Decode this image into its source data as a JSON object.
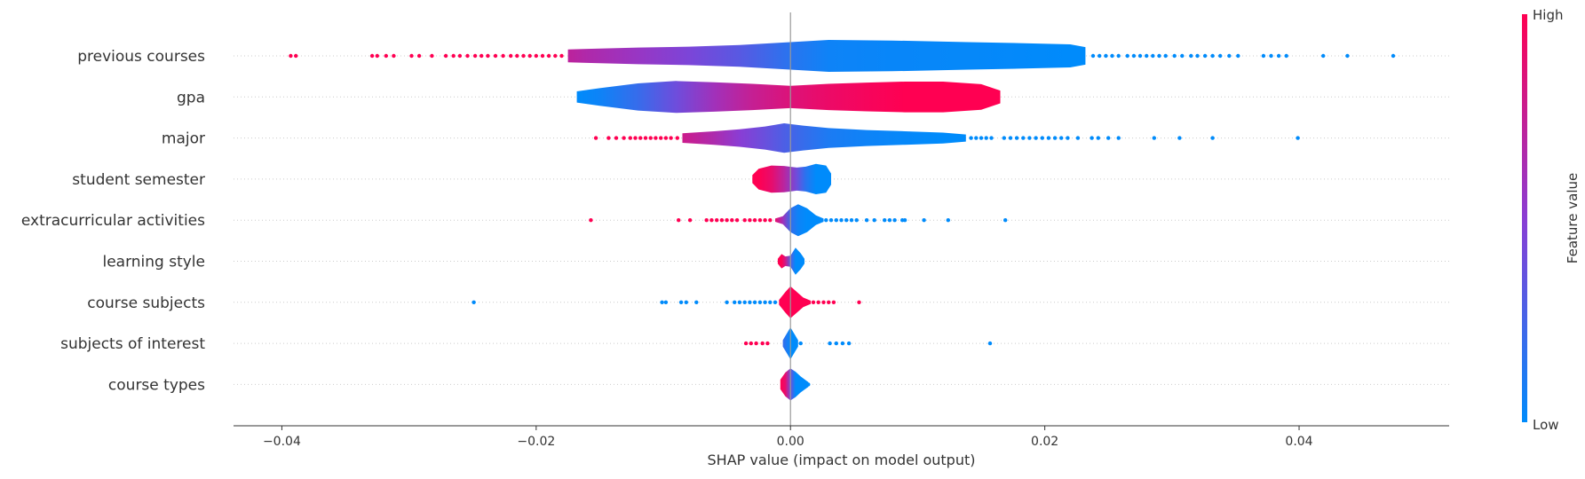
{
  "chart_data": {
    "type": "violin",
    "title": "",
    "xlabel": "SHAP value (impact on model output)",
    "ylabel": "",
    "xlim": [
      -0.0438,
      0.0518
    ],
    "xticks": [
      -0.04,
      -0.02,
      0.0,
      0.02,
      0.04
    ],
    "xtick_labels": [
      "−0.04",
      "−0.02",
      "0.00",
      "0.02",
      "0.04"
    ],
    "grid": false,
    "colorbar": {
      "label": "Feature value",
      "high_label": "High",
      "low_label": "Low",
      "high_color": "#ff0052",
      "low_color": "#008bfb"
    },
    "features": [
      {
        "name": "previous courses",
        "violin": [
          [
            -0.0175,
            0.4,
            0.72
          ],
          [
            -0.016,
            0.44,
            0.66
          ],
          [
            -0.012,
            0.52,
            0.56
          ],
          [
            -0.008,
            0.58,
            0.45
          ],
          [
            -0.004,
            0.68,
            0.32
          ],
          [
            0.0,
            0.86,
            0.15
          ],
          [
            0.003,
            1.0,
            0.05
          ],
          [
            0.008,
            0.96,
            0.03
          ],
          [
            0.014,
            0.86,
            0.02
          ],
          [
            0.018,
            0.8,
            0.01
          ],
          [
            0.022,
            0.72,
            0.0
          ],
          [
            0.0232,
            0.55,
            0.0
          ]
        ],
        "outliers": [
          [
            -0.0393,
            1
          ],
          [
            -0.0389,
            1
          ],
          [
            -0.0329,
            1
          ],
          [
            -0.0325,
            1
          ],
          [
            -0.0318,
            1
          ],
          [
            -0.0312,
            1
          ],
          [
            -0.0298,
            1
          ],
          [
            -0.0292,
            1
          ],
          [
            -0.0282,
            1
          ],
          [
            -0.0271,
            1
          ],
          [
            -0.0265,
            1
          ],
          [
            -0.026,
            1
          ],
          [
            -0.0254,
            1
          ],
          [
            -0.0248,
            1
          ],
          [
            -0.0243,
            1
          ],
          [
            -0.0238,
            1
          ],
          [
            -0.0232,
            1
          ],
          [
            -0.0226,
            1
          ],
          [
            -0.022,
            1
          ],
          [
            -0.0215,
            1
          ],
          [
            -0.021,
            1
          ],
          [
            -0.0205,
            1
          ],
          [
            -0.02,
            1
          ],
          [
            -0.0195,
            1
          ],
          [
            -0.019,
            1
          ],
          [
            -0.0185,
            1
          ],
          [
            -0.018,
            1
          ],
          [
            0.0238,
            0
          ],
          [
            0.0243,
            0
          ],
          [
            0.0248,
            0
          ],
          [
            0.0253,
            0
          ],
          [
            0.0258,
            0
          ],
          [
            0.0265,
            0
          ],
          [
            0.027,
            0
          ],
          [
            0.0275,
            0
          ],
          [
            0.028,
            0
          ],
          [
            0.0285,
            0
          ],
          [
            0.029,
            0
          ],
          [
            0.0295,
            0
          ],
          [
            0.0302,
            0
          ],
          [
            0.0308,
            0
          ],
          [
            0.0315,
            0
          ],
          [
            0.032,
            0
          ],
          [
            0.0326,
            0
          ],
          [
            0.0332,
            0
          ],
          [
            0.0338,
            0
          ],
          [
            0.0345,
            0
          ],
          [
            0.0352,
            0
          ],
          [
            0.0372,
            0
          ],
          [
            0.0378,
            0
          ],
          [
            0.0384,
            0
          ],
          [
            0.039,
            0
          ],
          [
            0.0419,
            0
          ],
          [
            0.0438,
            0
          ],
          [
            0.0474,
            0
          ]
        ]
      },
      {
        "name": "gpa",
        "violin": [
          [
            -0.0168,
            0.35,
            0.0
          ],
          [
            -0.015,
            0.55,
            0.05
          ],
          [
            -0.012,
            0.85,
            0.2
          ],
          [
            -0.009,
            1.0,
            0.4
          ],
          [
            -0.006,
            0.92,
            0.6
          ],
          [
            -0.003,
            0.82,
            0.75
          ],
          [
            0.0,
            0.7,
            0.85
          ],
          [
            0.003,
            0.82,
            0.92
          ],
          [
            0.006,
            0.9,
            0.96
          ],
          [
            0.009,
            0.96,
            1.0
          ],
          [
            0.012,
            0.96,
            1.0
          ],
          [
            0.015,
            0.8,
            1.0
          ],
          [
            0.0165,
            0.4,
            1.0
          ]
        ],
        "outliers": []
      },
      {
        "name": "major",
        "violin": [
          [
            -0.0085,
            0.3,
            0.78
          ],
          [
            -0.006,
            0.42,
            0.65
          ],
          [
            -0.004,
            0.55,
            0.5
          ],
          [
            -0.002,
            0.72,
            0.38
          ],
          [
            -0.0005,
            0.92,
            0.28
          ],
          [
            0.001,
            0.78,
            0.2
          ],
          [
            0.003,
            0.62,
            0.1
          ],
          [
            0.006,
            0.5,
            0.05
          ],
          [
            0.009,
            0.42,
            0.02
          ],
          [
            0.012,
            0.34,
            0.0
          ],
          [
            0.0138,
            0.22,
            0.0
          ]
        ],
        "outliers": [
          [
            -0.0153,
            1
          ],
          [
            -0.0143,
            1
          ],
          [
            -0.0137,
            1
          ],
          [
            -0.0131,
            1
          ],
          [
            -0.0126,
            1
          ],
          [
            -0.0122,
            1
          ],
          [
            -0.0118,
            1
          ],
          [
            -0.0114,
            1
          ],
          [
            -0.011,
            1
          ],
          [
            -0.0106,
            1
          ],
          [
            -0.0102,
            1
          ],
          [
            -0.0098,
            1
          ],
          [
            -0.0094,
            1
          ],
          [
            -0.0089,
            1
          ],
          [
            0.0142,
            0
          ],
          [
            0.0146,
            0
          ],
          [
            0.015,
            0
          ],
          [
            0.0154,
            0
          ],
          [
            0.0158,
            0
          ],
          [
            0.0168,
            0
          ],
          [
            0.0173,
            0
          ],
          [
            0.0178,
            0
          ],
          [
            0.0183,
            0
          ],
          [
            0.0188,
            0
          ],
          [
            0.0193,
            0
          ],
          [
            0.0198,
            0
          ],
          [
            0.0203,
            0
          ],
          [
            0.0208,
            0
          ],
          [
            0.0213,
            0
          ],
          [
            0.0218,
            0
          ],
          [
            0.0226,
            0
          ],
          [
            0.0237,
            0
          ],
          [
            0.0242,
            0
          ],
          [
            0.025,
            0
          ],
          [
            0.0258,
            0
          ],
          [
            0.0286,
            0
          ],
          [
            0.0306,
            0
          ],
          [
            0.0332,
            0
          ],
          [
            0.0399,
            0
          ]
        ]
      },
      {
        "name": "student semester",
        "violin": [
          [
            -0.003,
            0.25,
            1.0
          ],
          [
            -0.0025,
            0.65,
            1.0
          ],
          [
            -0.0015,
            0.85,
            0.9
          ],
          [
            -0.0005,
            0.82,
            0.7
          ],
          [
            0.0005,
            0.72,
            0.4
          ],
          [
            0.0012,
            0.78,
            0.15
          ],
          [
            0.002,
            0.95,
            0.0
          ],
          [
            0.0028,
            0.85,
            0.0
          ],
          [
            0.0032,
            0.35,
            0.0
          ]
        ],
        "outliers": []
      },
      {
        "name": "extracurricular activities",
        "violin": [
          [
            -0.0012,
            0.1,
            0.9
          ],
          [
            -0.0006,
            0.25,
            0.6
          ],
          [
            0.0,
            0.75,
            0.2
          ],
          [
            0.0006,
            1.0,
            0.05
          ],
          [
            0.0013,
            0.75,
            0.0
          ],
          [
            0.002,
            0.3,
            0.0
          ],
          [
            0.0026,
            0.1,
            0.0
          ]
        ],
        "outliers": [
          [
            -0.0157,
            1
          ],
          [
            -0.0088,
            1
          ],
          [
            -0.0079,
            1
          ],
          [
            -0.0066,
            1
          ],
          [
            -0.0062,
            1
          ],
          [
            -0.0058,
            1
          ],
          [
            -0.0054,
            1
          ],
          [
            -0.005,
            1
          ],
          [
            -0.0046,
            1
          ],
          [
            -0.0042,
            1
          ],
          [
            -0.0036,
            1
          ],
          [
            -0.0032,
            1
          ],
          [
            -0.0028,
            1
          ],
          [
            -0.0024,
            1
          ],
          [
            -0.002,
            1
          ],
          [
            -0.0016,
            1
          ],
          [
            0.0028,
            0
          ],
          [
            0.0032,
            0
          ],
          [
            0.0036,
            0
          ],
          [
            0.004,
            0
          ],
          [
            0.0044,
            0
          ],
          [
            0.0048,
            0
          ],
          [
            0.0052,
            0
          ],
          [
            0.006,
            0
          ],
          [
            0.0066,
            0
          ],
          [
            0.0074,
            0
          ],
          [
            0.0078,
            0
          ],
          [
            0.0082,
            0
          ],
          [
            0.0088,
            0
          ],
          [
            0.009,
            0
          ],
          [
            0.0105,
            0
          ],
          [
            0.0124,
            0
          ],
          [
            0.0169,
            0
          ]
        ]
      },
      {
        "name": "learning style",
        "violin": [
          [
            -0.001,
            0.15,
            1.0
          ],
          [
            -0.0007,
            0.45,
            1.0
          ],
          [
            -0.0004,
            0.3,
            0.8
          ],
          [
            0.0,
            0.35,
            0.3
          ],
          [
            0.0004,
            0.85,
            0.0
          ],
          [
            0.0008,
            0.5,
            0.0
          ],
          [
            0.0011,
            0.15,
            0.0
          ]
        ],
        "outliers": []
      },
      {
        "name": "course subjects",
        "violin": [
          [
            -0.0009,
            0.15,
            1.0
          ],
          [
            -0.0004,
            0.65,
            1.0
          ],
          [
            0.0,
            1.0,
            1.0
          ],
          [
            0.0005,
            0.65,
            1.0
          ],
          [
            0.001,
            0.3,
            1.0
          ],
          [
            0.0016,
            0.1,
            1.0
          ]
        ],
        "outliers": [
          [
            -0.0249,
            0
          ],
          [
            -0.0101,
            0
          ],
          [
            -0.0098,
            0
          ],
          [
            -0.0086,
            0
          ],
          [
            -0.0082,
            0
          ],
          [
            -0.0074,
            0
          ],
          [
            -0.005,
            0
          ],
          [
            -0.0044,
            0
          ],
          [
            -0.004,
            0
          ],
          [
            -0.0036,
            0
          ],
          [
            -0.0032,
            0
          ],
          [
            -0.0028,
            0
          ],
          [
            -0.0024,
            0
          ],
          [
            -0.002,
            0
          ],
          [
            -0.0016,
            0
          ],
          [
            -0.0012,
            0
          ],
          [
            0.0018,
            1
          ],
          [
            0.0022,
            1
          ],
          [
            0.0026,
            1
          ],
          [
            0.003,
            1
          ],
          [
            0.0034,
            1
          ],
          [
            0.0054,
            1
          ]
        ]
      },
      {
        "name": "subjects of interest",
        "violin": [
          [
            -0.0006,
            0.2,
            0.2
          ],
          [
            -0.0003,
            0.6,
            0.1
          ],
          [
            0.0,
            1.0,
            0.0
          ],
          [
            0.0003,
            0.6,
            0.0
          ],
          [
            0.0006,
            0.2,
            0.0
          ]
        ],
        "outliers": [
          [
            -0.0035,
            1
          ],
          [
            -0.0031,
            1
          ],
          [
            -0.0027,
            1
          ],
          [
            -0.0022,
            1
          ],
          [
            -0.0018,
            1
          ],
          [
            0.0008,
            0
          ],
          [
            0.0031,
            0
          ],
          [
            0.0036,
            0
          ],
          [
            0.0041,
            0
          ],
          [
            0.0046,
            0
          ],
          [
            0.0157,
            0
          ]
        ]
      },
      {
        "name": "course types",
        "violin": [
          [
            -0.0008,
            0.3,
            1.0
          ],
          [
            -0.0004,
            0.75,
            0.9
          ],
          [
            0.0,
            1.0,
            0.4
          ],
          [
            0.0004,
            0.8,
            0.0
          ],
          [
            0.0008,
            0.5,
            0.0
          ],
          [
            0.0014,
            0.15,
            0.0
          ]
        ],
        "outliers": [
          [
            0.0011,
            0
          ],
          [
            0.0014,
            0
          ]
        ]
      }
    ]
  }
}
